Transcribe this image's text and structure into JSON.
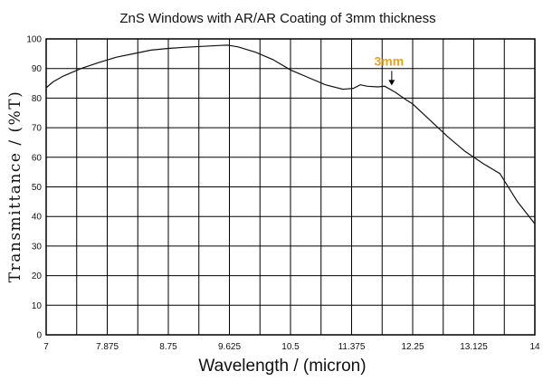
{
  "chart_data": {
    "type": "line",
    "title": "ZnS Windows with AR/AR Coating of 3mm thickness",
    "xlabel": "Wavelength / (micron)",
    "ylabel": "Transmittance / (%T)",
    "xlim": [
      7,
      14
    ],
    "ylim": [
      0,
      100
    ],
    "xticks": [
      "7",
      "7.875",
      "8.75",
      "9.625",
      "10.5",
      "11.375",
      "12.25",
      "13.125",
      "14"
    ],
    "yticks": [
      "0",
      "10",
      "20",
      "30",
      "40",
      "50",
      "60",
      "70",
      "80",
      "90",
      "100"
    ],
    "grid": true,
    "colors": {
      "line": "#111111",
      "grid": "#000000",
      "annotation": "#e8a317"
    },
    "series": [
      {
        "x": [
          7.0,
          7.1,
          7.25,
          7.5,
          7.75,
          8.0,
          8.25,
          8.5,
          8.75,
          9.0,
          9.25,
          9.5,
          9.6,
          9.75,
          10.0,
          10.25,
          10.5,
          10.6,
          10.75,
          11.0,
          11.25,
          11.4,
          11.5,
          11.6,
          11.75,
          11.85,
          12.0,
          12.15,
          12.25,
          12.5,
          12.75,
          13.0,
          13.25,
          13.5,
          13.75,
          14.0
        ],
        "y": [
          83.5,
          85.5,
          87.5,
          90,
          92,
          93.8,
          95,
          96.2,
          96.8,
          97.2,
          97.5,
          97.8,
          97.9,
          97.3,
          95.5,
          93,
          89.5,
          88.5,
          87,
          84.5,
          83,
          83.3,
          84.5,
          84,
          83.8,
          84,
          82,
          79.5,
          78,
          72.5,
          67,
          62,
          58,
          54.5,
          45,
          37.5
        ]
      }
    ],
    "annotation": {
      "text": "3mm",
      "x": 11.95,
      "y": 84
    }
  }
}
